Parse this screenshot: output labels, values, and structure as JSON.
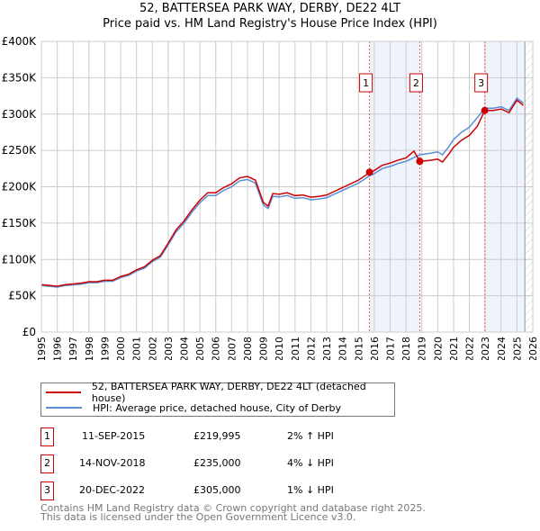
{
  "chart_data": {
    "type": "line",
    "title": "52, BATTERSEA PARK WAY, DERBY, DE22 4LT",
    "subtitle": "Price paid vs. HM Land Registry's House Price Index (HPI)",
    "xlim": [
      1995,
      2026
    ],
    "ylim": [
      0,
      400000
    ],
    "yticks": [
      {
        "v": 0,
        "label": "£0"
      },
      {
        "v": 50000,
        "label": "£50K"
      },
      {
        "v": 100000,
        "label": "£100K"
      },
      {
        "v": 150000,
        "label": "£150K"
      },
      {
        "v": 200000,
        "label": "£200K"
      },
      {
        "v": 250000,
        "label": "£250K"
      },
      {
        "v": 300000,
        "label": "£300K"
      },
      {
        "v": 350000,
        "label": "£350K"
      },
      {
        "v": 400000,
        "label": "£400K"
      }
    ],
    "xticks": [
      "1995",
      "1996",
      "1997",
      "1998",
      "1999",
      "2000",
      "2001",
      "2002",
      "2003",
      "2004",
      "2005",
      "2006",
      "2007",
      "2008",
      "2009",
      "2010",
      "2011",
      "2012",
      "2013",
      "2014",
      "2015",
      "2016",
      "2017",
      "2018",
      "2019",
      "2020",
      "2021",
      "2022",
      "2023",
      "2024",
      "2025",
      "2026"
    ],
    "grid": true,
    "x": [
      1995,
      1995.5,
      1996,
      1996.5,
      1997,
      1997.5,
      1998,
      1998.5,
      1999,
      1999.5,
      2000,
      2000.5,
      2001,
      2001.5,
      2002,
      2002.5,
      2003,
      2003.5,
      2004,
      2004.5,
      2005,
      2005.5,
      2006,
      2006.5,
      2007,
      2007.5,
      2008,
      2008.5,
      2009,
      2009.3,
      2009.6,
      2010,
      2010.5,
      2011,
      2011.5,
      2012,
      2012.5,
      2013,
      2013.5,
      2014,
      2014.5,
      2015,
      2015.7,
      2016,
      2016.5,
      2017,
      2017.5,
      2018,
      2018.5,
      2018.87,
      2019.5,
      2020,
      2020.3,
      2020.7,
      2021,
      2021.5,
      2022,
      2022.5,
      2022.97,
      2023.5,
      2024,
      2024.5,
      2025,
      2025.4
    ],
    "series": [
      {
        "name": "HPI: Average price, detached house, City of Derby",
        "color": "#5b8fd6",
        "values": [
          64,
          63,
          62,
          64,
          65,
          66,
          68,
          68,
          70,
          70,
          75,
          78,
          84,
          88,
          97,
          103,
          120,
          138,
          150,
          165,
          178,
          188,
          188,
          195,
          200,
          208,
          210,
          205,
          175,
          170,
          187,
          186,
          188,
          184,
          185,
          182,
          183,
          185,
          190,
          195,
          200,
          205,
          215,
          218,
          225,
          228,
          232,
          235,
          240,
          244,
          246,
          248,
          244,
          255,
          265,
          275,
          282,
          295,
          308,
          308,
          310,
          305,
          322,
          315
        ]
      },
      {
        "name": "52, BATTERSEA PARK WAY, DERBY, DE22 4LT (detached house)",
        "color": "#cc0000",
        "values": [
          65.3,
          64.3,
          63.2,
          65.3,
          66.3,
          67.3,
          69.4,
          69.4,
          71.4,
          71.4,
          76.5,
          79.6,
          85.7,
          89.8,
          98.9,
          105.1,
          122.4,
          140.8,
          153,
          168.3,
          181.6,
          191.8,
          191.8,
          198.9,
          204,
          212.2,
          214.2,
          209.1,
          178.5,
          173.4,
          190.7,
          189.7,
          191.8,
          187.7,
          188.7,
          185.6,
          186.7,
          188.7,
          193.8,
          198.9,
          204,
          209.1,
          219.3,
          222.4,
          229.5,
          232.6,
          236.6,
          239.7,
          249,
          235,
          236.2,
          238,
          234,
          244.8,
          254.4,
          264,
          270.7,
          283.2,
          305,
          305,
          307,
          302,
          319,
          312
        ]
      }
    ],
    "value_unit": "£K",
    "sales": [
      {
        "n": "1",
        "x": 2015.7,
        "date": "11-SEP-2015",
        "price": "£219,995",
        "value": 219995,
        "hpi": "2% ↑ HPI"
      },
      {
        "n": "2",
        "x": 2018.87,
        "date": "14-NOV-2018",
        "price": "£235,000",
        "value": 235000,
        "hpi": "4% ↓ HPI"
      },
      {
        "n": "3",
        "x": 2022.97,
        "date": "20-DEC-2022",
        "price": "£305,000",
        "value": 305000,
        "hpi": "1% ↓ HPI"
      }
    ],
    "data_end": 2025.5
  },
  "footer": [
    "Contains HM Land Registry data © Crown copyright and database right 2025.",
    "This data is licensed under the Open Government Licence v3.0."
  ]
}
